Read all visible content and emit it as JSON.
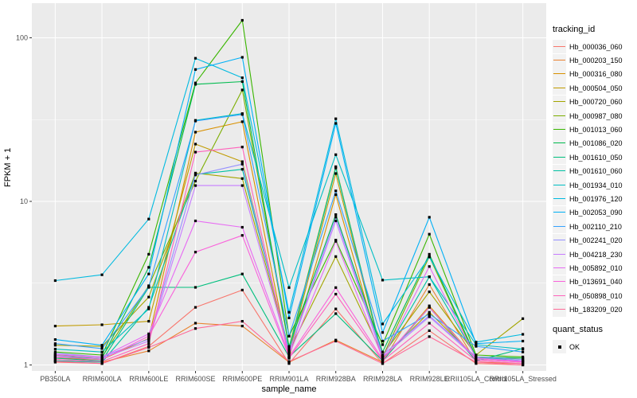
{
  "colors": {
    "panel_bg": "#EBEBEB",
    "grid": "#FFFFFF",
    "tick_label": "#4D4D4D",
    "axis_title": "#000000",
    "point": "#000000",
    "legend_key_bg": "#F2F2F2"
  },
  "chart_data": {
    "type": "line",
    "xlabel": "sample_name",
    "ylabel": "FPKM + 1",
    "y_scale": "log10",
    "y_ticks": [
      1,
      10,
      100
    ],
    "y_minor_ticks": [
      3.1623,
      31.623
    ],
    "ylim": [
      0.92,
      163
    ],
    "grid": true,
    "point_shape": "black-square",
    "legend_position": "right",
    "categories": [
      "PB350LA",
      "RRIM600LA",
      "RRIM600LE",
      "RRIM600SE",
      "RRIM600PE",
      "RRIM901LA",
      "RRIM928BA",
      "RRIM928LA",
      "RRIM928LE",
      "RRII105LA_Control",
      "RRII105LA_Stressed"
    ],
    "series": [
      {
        "name": "Hb_000036_060",
        "color": "#F8766D",
        "values": [
          1.04,
          1.02,
          1.3,
          2.25,
          2.87,
          1.02,
          2.2,
          1.02,
          1.62,
          1.02,
          1.0
        ]
      },
      {
        "name": "Hb_000203_150",
        "color": "#EA8331",
        "values": [
          1.06,
          1.04,
          1.22,
          1.8,
          1.73,
          1.04,
          1.42,
          1.04,
          3.1,
          1.04,
          1.02
        ]
      },
      {
        "name": "Hb_000316_080",
        "color": "#D89000",
        "values": [
          1.1,
          1.08,
          1.45,
          26.5,
          30.7,
          1.1,
          11.0,
          1.06,
          2.3,
          1.08,
          1.04
        ]
      },
      {
        "name": "Hb_000504_050",
        "color": "#C09B00",
        "values": [
          1.73,
          1.76,
          1.85,
          22.4,
          17.5,
          1.18,
          14.8,
          1.1,
          2.1,
          1.1,
          1.06
        ]
      },
      {
        "name": "Hb_000720_060",
        "color": "#A3A500",
        "values": [
          1.32,
          1.3,
          2.6,
          14.9,
          13.8,
          1.22,
          4.6,
          1.15,
          2.8,
          1.15,
          1.92
        ]
      },
      {
        "name": "Hb_000987_080",
        "color": "#7CAE00",
        "values": [
          1.15,
          1.12,
          3.05,
          13.3,
          48.0,
          1.28,
          16.3,
          1.12,
          4.6,
          1.1,
          1.1
        ]
      },
      {
        "name": "Hb_001013_060",
        "color": "#39B600",
        "values": [
          1.2,
          1.15,
          4.75,
          53.0,
          128.0,
          1.5,
          5.8,
          1.33,
          6.3,
          1.15,
          1.12
        ]
      },
      {
        "name": "Hb_001086_020",
        "color": "#00BB4E",
        "values": [
          1.12,
          1.1,
          3.95,
          52.0,
          54.0,
          1.3,
          8.3,
          1.2,
          4.75,
          1.12,
          1.1
        ]
      },
      {
        "name": "Hb_001610_050",
        "color": "#00BF7D",
        "values": [
          1.1,
          1.06,
          2.98,
          2.98,
          3.6,
          1.12,
          2.06,
          1.06,
          2.25,
          1.06,
          1.26
        ]
      },
      {
        "name": "Hb_001610_060",
        "color": "#00C1A3",
        "values": [
          1.06,
          1.04,
          2.25,
          14.6,
          15.7,
          1.24,
          16.0,
          1.12,
          3.46,
          1.12,
          1.06
        ]
      },
      {
        "name": "Hb_001934_010",
        "color": "#00BFC4",
        "values": [
          1.25,
          1.2,
          2.2,
          31.3,
          34.4,
          2.97,
          19.3,
          3.3,
          3.46,
          1.33,
          1.25
        ]
      },
      {
        "name": "Hb_001976_120",
        "color": "#00BAE0",
        "values": [
          3.28,
          3.56,
          7.8,
          75.0,
          57.0,
          2.1,
          32.0,
          1.78,
          4.57,
          1.38,
          1.54
        ]
      },
      {
        "name": "Hb_002053_090",
        "color": "#00B0F6",
        "values": [
          1.43,
          1.32,
          3.6,
          64.0,
          76.0,
          1.94,
          30.0,
          1.58,
          8.0,
          1.35,
          1.4
        ]
      },
      {
        "name": "Hb_002110_210",
        "color": "#35A2FF",
        "values": [
          1.35,
          1.26,
          3.0,
          31.0,
          34.0,
          1.5,
          11.6,
          1.4,
          2.05,
          1.3,
          1.2
        ]
      },
      {
        "name": "Hb_002241_020",
        "color": "#9590FF",
        "values": [
          1.18,
          1.12,
          1.44,
          14.5,
          16.9,
          1.2,
          8.0,
          1.15,
          2.0,
          1.12,
          1.08
        ]
      },
      {
        "name": "Hb_004218_230",
        "color": "#C77CFF",
        "values": [
          1.14,
          1.1,
          1.4,
          12.5,
          12.5,
          1.18,
          7.6,
          1.12,
          1.97,
          1.1,
          1.06
        ]
      },
      {
        "name": "Hb_005892_010",
        "color": "#E76BF3",
        "values": [
          1.16,
          1.12,
          1.55,
          7.6,
          6.95,
          1.15,
          5.7,
          1.1,
          4.0,
          1.1,
          1.05
        ]
      },
      {
        "name": "Hb_013691_040",
        "color": "#FA62DB",
        "values": [
          1.12,
          1.08,
          1.5,
          4.9,
          6.2,
          1.12,
          2.97,
          1.08,
          2.25,
          1.08,
          1.04
        ]
      },
      {
        "name": "Hb_050898_010",
        "color": "#FF62BC",
        "values": [
          1.08,
          1.05,
          1.35,
          20.0,
          21.5,
          1.1,
          2.71,
          1.06,
          1.8,
          1.06,
          1.02
        ]
      },
      {
        "name": "Hb_183209_020",
        "color": "#FF6A98",
        "values": [
          1.05,
          1.02,
          1.28,
          1.67,
          1.85,
          1.05,
          1.4,
          1.02,
          1.49,
          1.04,
          1.0
        ]
      }
    ],
    "legend": {
      "tracking_title": "tracking_id",
      "quant_title": "quant_status",
      "quant_label": "OK"
    }
  }
}
